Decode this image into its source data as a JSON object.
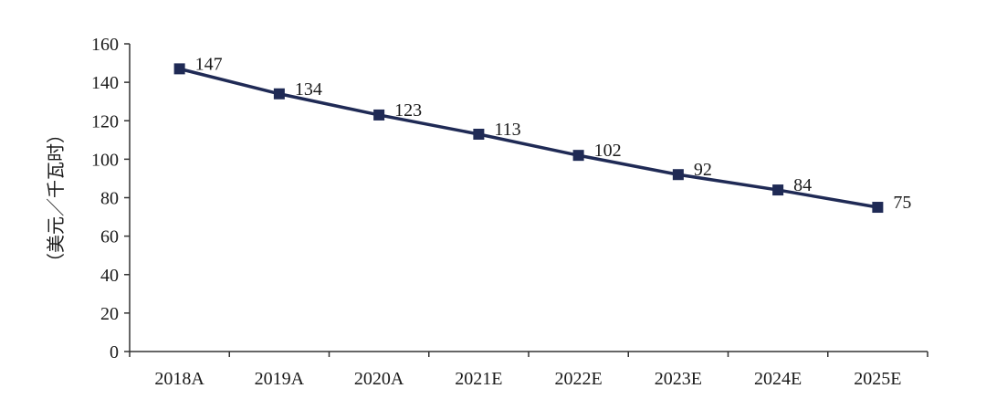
{
  "chart_data": {
    "type": "line",
    "title": "",
    "xlabel": "",
    "ylabel": "（美元／千瓦时）",
    "categories": [
      "2018A",
      "2019A",
      "2020A",
      "2021E",
      "2022E",
      "2023E",
      "2024E",
      "2025E"
    ],
    "series": [
      {
        "values": [
          147,
          134,
          123,
          113,
          102,
          92,
          84,
          75
        ]
      }
    ],
    "ylim": [
      0,
      160
    ],
    "yticks": [
      0,
      20,
      40,
      60,
      80,
      100,
      120,
      140,
      160
    ],
    "data_labels": [
      "147",
      "134",
      "123",
      "113",
      "102",
      "92",
      "84",
      "75"
    ],
    "grid": false,
    "legend": "none",
    "marker": "square",
    "colors": {
      "line": "#1f2a55",
      "axis": "#333333",
      "text": "#1a1a1a"
    }
  }
}
